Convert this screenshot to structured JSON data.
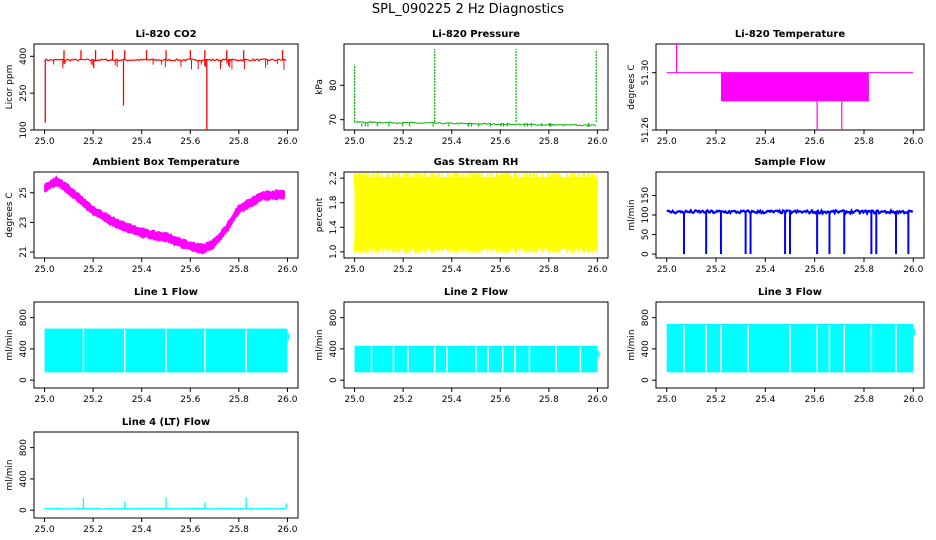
{
  "figure_title": "SPL_090225  2 Hz Diagnostics",
  "chart_data": [
    {
      "type": "line",
      "title": "Li-820 CO2",
      "xlabel": "",
      "ylabel": "Licor ppm",
      "xlim": [
        25.0,
        26.0
      ],
      "ylim": [
        100,
        450
      ],
      "color": "#ff0000",
      "x_ticks": [
        "25.0",
        "25.2",
        "25.4",
        "25.6",
        "25.8",
        "26.0"
      ],
      "y_ticks": [
        {
          "value": 100,
          "label": "100"
        },
        {
          "value": 250,
          "label": "250"
        },
        {
          "value": 400,
          "label": "400"
        }
      ],
      "baseline": 385,
      "band": 8,
      "spikes": [
        {
          "x": 25.003,
          "y": 130
        },
        {
          "x": 25.08,
          "y": 425
        },
        {
          "x": 25.15,
          "y": 425
        },
        {
          "x": 25.21,
          "y": 425
        },
        {
          "x": 25.28,
          "y": 425
        },
        {
          "x": 25.325,
          "y": 200
        },
        {
          "x": 25.33,
          "y": 425
        },
        {
          "x": 25.42,
          "y": 425
        },
        {
          "x": 25.5,
          "y": 425
        },
        {
          "x": 25.6,
          "y": 425
        },
        {
          "x": 25.66,
          "y": 425
        },
        {
          "x": 25.668,
          "y": 100
        },
        {
          "x": 25.75,
          "y": 425
        },
        {
          "x": 25.82,
          "y": 425
        },
        {
          "x": 25.98,
          "y": 425
        }
      ]
    },
    {
      "type": "line",
      "title": "Li-820 Pressure",
      "xlabel": "",
      "ylabel": "kPa",
      "xlim": [
        25.0,
        26.0
      ],
      "ylim": [
        67,
        92
      ],
      "color": "#00b000",
      "x_ticks": [
        "25.0",
        "25.2",
        "25.4",
        "25.6",
        "25.8",
        "26.0"
      ],
      "y_ticks": [
        {
          "value": 70,
          "label": "70"
        },
        {
          "value": 80,
          "label": "80"
        }
      ],
      "baseline_start": 69.3,
      "baseline_end": 68.3,
      "band": 0.4,
      "spikes": [
        {
          "x": 25.0,
          "y": 86
        },
        {
          "x": 25.33,
          "y": 90.5
        },
        {
          "x": 25.665,
          "y": 90.5
        },
        {
          "x": 25.995,
          "y": 90
        }
      ]
    },
    {
      "type": "line",
      "title": "Li-820 Temperature",
      "xlabel": "",
      "ylabel": "degrees C",
      "xlim": [
        25.0,
        26.0
      ],
      "ylim": [
        51.26,
        51.32
      ],
      "color": "#ff00ff",
      "x_ticks": [
        "25.0",
        "25.2",
        "25.4",
        "25.6",
        "25.8",
        "26.0"
      ],
      "y_ticks": [
        {
          "value": 51.26,
          "label": "51.26"
        },
        {
          "value": 51.3,
          "label": "51.30"
        }
      ],
      "baseline": 51.3,
      "fill_range": [
        25.22,
        25.82
      ],
      "fill_low": 51.28,
      "spikes": [
        {
          "x": 25.04,
          "y": 51.32
        },
        {
          "x": 25.61,
          "y": 51.26
        },
        {
          "x": 25.71,
          "y": 51.26
        },
        {
          "x": 25.84,
          "y": 51.28
        }
      ]
    },
    {
      "type": "line",
      "title": "Ambient Box Temperature",
      "xlabel": "",
      "ylabel": "degrees C",
      "xlim": [
        25.0,
        26.0
      ],
      "ylim": [
        20.6,
        26.4
      ],
      "color": "#ff00ff",
      "x_ticks": [
        "25.0",
        "25.2",
        "25.4",
        "25.6",
        "25.8",
        "26.0"
      ],
      "y_ticks": [
        {
          "value": 21,
          "label": "21"
        },
        {
          "value": 23,
          "label": "23"
        },
        {
          "value": 25,
          "label": "25"
        }
      ],
      "x": [
        25.0,
        25.05,
        25.1,
        25.2,
        25.3,
        25.4,
        25.5,
        25.6,
        25.65,
        25.7,
        25.75,
        25.8,
        25.9,
        25.99
      ],
      "y": [
        25.3,
        25.8,
        25.2,
        23.8,
        22.9,
        22.3,
        22.0,
        21.4,
        21.2,
        21.6,
        22.6,
        23.9,
        24.8,
        24.9
      ],
      "band": 0.4
    },
    {
      "type": "area",
      "title": "Gas Stream RH",
      "xlabel": "",
      "ylabel": "percent",
      "xlim": [
        25.0,
        26.0
      ],
      "ylim": [
        0.9,
        2.3
      ],
      "color": "#ffff00",
      "x_ticks": [
        "25.0",
        "25.2",
        "25.4",
        "25.6",
        "25.8",
        "26.0"
      ],
      "y_ticks": [
        {
          "value": 1.0,
          "label": "1.0"
        },
        {
          "value": 1.4,
          "label": "1.4"
        },
        {
          "value": 1.8,
          "label": "1.8"
        },
        {
          "value": 2.2,
          "label": "2.2"
        }
      ],
      "low": 1.05,
      "high": 2.22
    },
    {
      "type": "line",
      "title": "Sample Flow",
      "xlabel": "",
      "ylabel": "ml/min",
      "xlim": [
        25.0,
        26.0
      ],
      "ylim": [
        -10,
        210
      ],
      "color": "#0000ff",
      "x_ticks": [
        "25.0",
        "25.2",
        "25.4",
        "25.6",
        "25.8",
        "26.0"
      ],
      "y_ticks": [
        {
          "value": 0,
          "label": "0"
        },
        {
          "value": 50,
          "label": "50"
        },
        {
          "value": 100,
          "label": "100"
        },
        {
          "value": 150,
          "label": "150"
        }
      ],
      "baseline": 108,
      "band": 8,
      "dips": [
        25.07,
        25.16,
        25.22,
        25.32,
        25.34,
        25.48,
        25.5,
        25.61,
        25.66,
        25.72,
        25.83,
        25.85,
        25.93,
        25.98
      ]
    },
    {
      "type": "area",
      "title": "Line 1 Flow",
      "xlabel": "",
      "ylabel": "ml/min",
      "xlim": [
        25.0,
        26.0
      ],
      "ylim": [
        -100,
        1000
      ],
      "color": "#00ffff",
      "x_ticks": [
        "25.0",
        "25.2",
        "25.4",
        "25.6",
        "25.8",
        "26.0"
      ],
      "y_ticks": [
        {
          "value": 0,
          "label": "0"
        },
        {
          "value": 400,
          "label": "400"
        },
        {
          "value": 800,
          "label": "800"
        }
      ],
      "low": 100,
      "high": 660,
      "gaps": [
        25.16,
        25.33,
        25.5,
        25.66,
        25.83
      ]
    },
    {
      "type": "area",
      "title": "Line 2 Flow",
      "xlabel": "",
      "ylabel": "ml/min",
      "xlim": [
        25.0,
        26.0
      ],
      "ylim": [
        -100,
        1000
      ],
      "color": "#00ffff",
      "x_ticks": [
        "25.0",
        "25.2",
        "25.4",
        "25.6",
        "25.8",
        "26.0"
      ],
      "y_ticks": [
        {
          "value": 0,
          "label": "0"
        },
        {
          "value": 400,
          "label": "400"
        },
        {
          "value": 800,
          "label": "800"
        }
      ],
      "low": 100,
      "high": 440,
      "gaps": [
        25.07,
        25.16,
        25.22,
        25.33,
        25.38,
        25.5,
        25.55,
        25.61,
        25.66,
        25.72,
        25.83,
        25.93
      ]
    },
    {
      "type": "area",
      "title": "Line 3 Flow",
      "xlabel": "",
      "ylabel": "ml/min",
      "xlim": [
        25.0,
        26.0
      ],
      "ylim": [
        -100,
        1000
      ],
      "color": "#00ffff",
      "x_ticks": [
        "25.0",
        "25.2",
        "25.4",
        "25.6",
        "25.8",
        "26.0"
      ],
      "y_ticks": [
        {
          "value": 0,
          "label": "0"
        },
        {
          "value": 400,
          "label": "400"
        },
        {
          "value": 800,
          "label": "800"
        }
      ],
      "low": 100,
      "high": 720,
      "gaps": [
        25.07,
        25.16,
        25.22,
        25.33,
        25.5,
        25.61,
        25.66,
        25.72,
        25.83,
        25.93
      ]
    },
    {
      "type": "line",
      "title": "Line 4 (LT) Flow",
      "xlabel": "",
      "ylabel": "ml/min",
      "xlim": [
        25.0,
        26.0
      ],
      "ylim": [
        -100,
        1000
      ],
      "color": "#00ffff",
      "x_ticks": [
        "25.0",
        "25.2",
        "25.4",
        "25.6",
        "25.8",
        "26.0"
      ],
      "y_ticks": [
        {
          "value": 0,
          "label": "0"
        },
        {
          "value": 400,
          "label": "400"
        },
        {
          "value": 800,
          "label": "800"
        }
      ],
      "baseline": 20,
      "band": 10,
      "spikes": [
        {
          "x": 25.16,
          "y": 160
        },
        {
          "x": 25.33,
          "y": 110
        },
        {
          "x": 25.5,
          "y": 160
        },
        {
          "x": 25.66,
          "y": 100
        },
        {
          "x": 25.83,
          "y": 160
        },
        {
          "x": 25.995,
          "y": 90
        }
      ]
    }
  ]
}
